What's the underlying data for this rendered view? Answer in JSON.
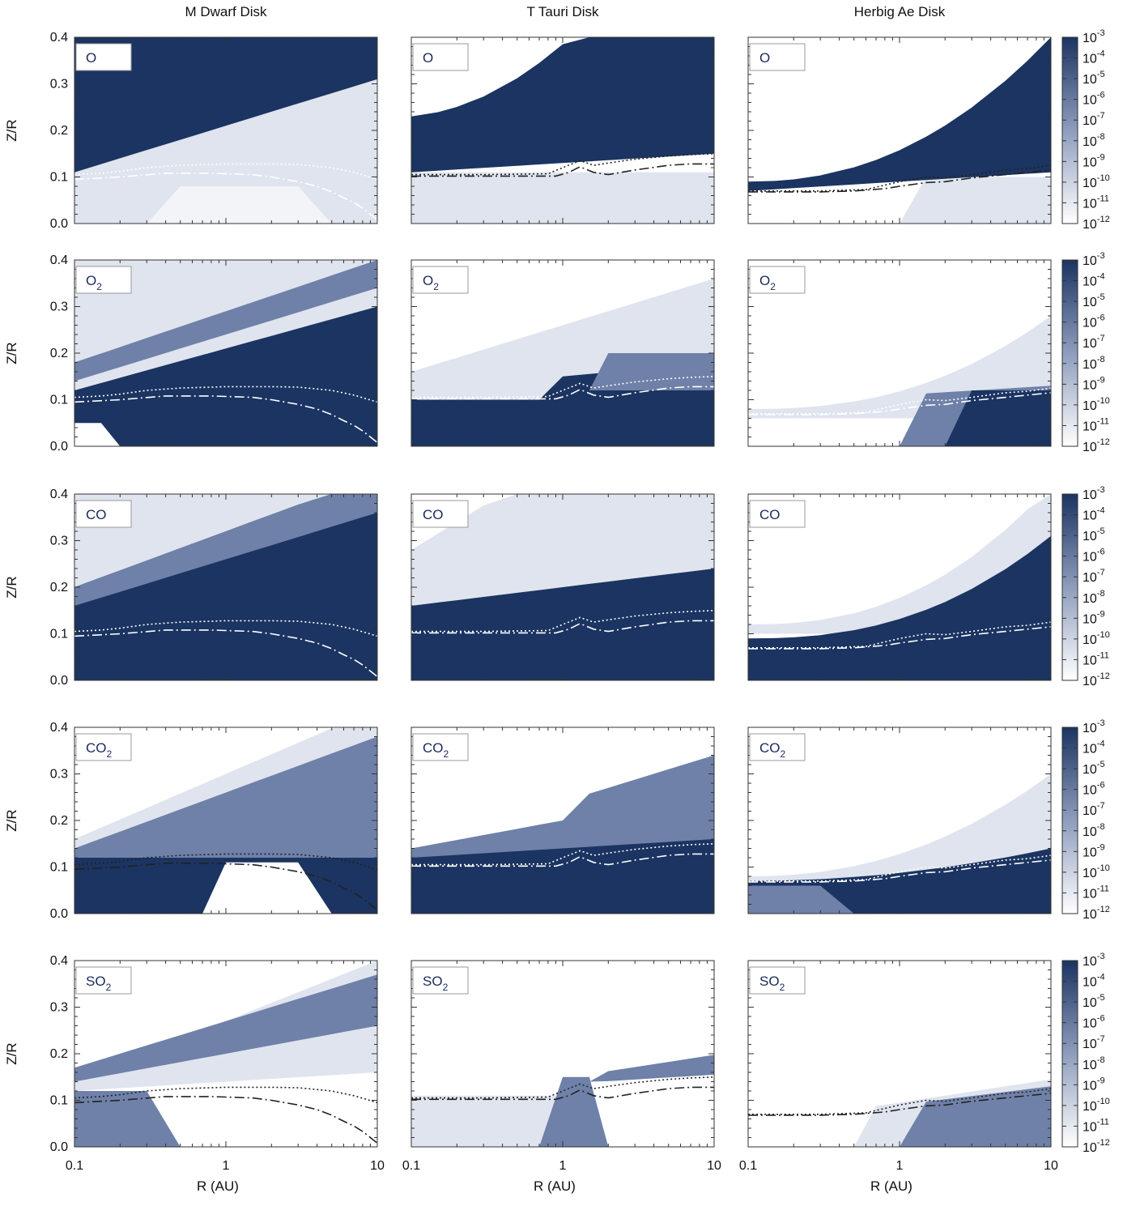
{
  "chart_data": {
    "type": "heatmap",
    "column_titles": [
      "M Dwarf Disk",
      "T Tauri Disk",
      "Herbig Ae Disk"
    ],
    "species": [
      {
        "label": "O",
        "sub": ""
      },
      {
        "label": "O",
        "sub": "2"
      },
      {
        "label": "CO",
        "sub": ""
      },
      {
        "label": "CO",
        "sub": "2"
      },
      {
        "label": "SO",
        "sub": "2"
      }
    ],
    "xlabel": "R (AU)",
    "ylabel": "Z/R",
    "x_scale": "log",
    "xlim": [
      0.1,
      10
    ],
    "ylim": [
      0.0,
      0.4
    ],
    "x_ticks": [
      "0.1",
      "1",
      "10"
    ],
    "y_ticks": [
      "0.0",
      "0.1",
      "0.2",
      "0.3",
      "0.4"
    ],
    "colorbar": {
      "scale": "log",
      "range": [
        1e-12,
        0.001
      ],
      "base": "10",
      "exponents": [
        "-3",
        "-4",
        "-5",
        "-6",
        "-7",
        "-8",
        "-9",
        "-10",
        "-11",
        "-12"
      ],
      "color_low": "#ffffff",
      "color_high": "#1b3461"
    },
    "boundary_lines": {
      "dotted": {
        "M Dwarf Disk": {
          "R": [
            0.1,
            0.15,
            0.2,
            0.3,
            0.5,
            0.8,
            1,
            2,
            3,
            5,
            7,
            10
          ],
          "zr": [
            0.105,
            0.108,
            0.112,
            0.12,
            0.125,
            0.127,
            0.128,
            0.128,
            0.127,
            0.12,
            0.11,
            0.095
          ]
        },
        "T Tauri Disk": {
          "R": [
            0.1,
            0.3,
            0.8,
            1.0,
            1.3,
            1.6,
            2,
            3,
            5,
            7,
            10
          ],
          "zr": [
            0.105,
            0.105,
            0.107,
            0.12,
            0.135,
            0.125,
            0.13,
            0.138,
            0.145,
            0.148,
            0.15
          ]
        },
        "Herbig Ae Disk": {
          "R": [
            0.1,
            0.3,
            0.6,
            1.0,
            1.5,
            2,
            3,
            5,
            7,
            10
          ],
          "zr": [
            0.07,
            0.07,
            0.073,
            0.09,
            0.1,
            0.098,
            0.105,
            0.115,
            0.118,
            0.125
          ]
        }
      },
      "dashdot": {
        "M Dwarf Disk": {
          "R": [
            0.1,
            0.2,
            0.4,
            0.8,
            1,
            1.5,
            2,
            3,
            4,
            5,
            6,
            7,
            8,
            9,
            10
          ],
          "zr": [
            0.095,
            0.1,
            0.108,
            0.108,
            0.107,
            0.105,
            0.1,
            0.09,
            0.08,
            0.068,
            0.055,
            0.045,
            0.033,
            0.02,
            0.008
          ]
        },
        "T Tauri Disk": {
          "R": [
            0.1,
            0.5,
            0.9,
            1.1,
            1.3,
            1.6,
            2,
            3,
            5,
            7,
            10
          ],
          "zr": [
            0.102,
            0.102,
            0.102,
            0.11,
            0.122,
            0.11,
            0.105,
            0.115,
            0.125,
            0.128,
            0.128
          ]
        },
        "Herbig Ae Disk": {
          "R": [
            0.1,
            0.3,
            0.5,
            0.8,
            1,
            1.5,
            2,
            3,
            5,
            7,
            10
          ],
          "zr": [
            0.068,
            0.068,
            0.07,
            0.075,
            0.08,
            0.088,
            0.09,
            0.098,
            0.105,
            0.11,
            0.115
          ]
        }
      }
    },
    "line_colors": {
      "light": "#ffffff",
      "dark": "#222222"
    }
  }
}
